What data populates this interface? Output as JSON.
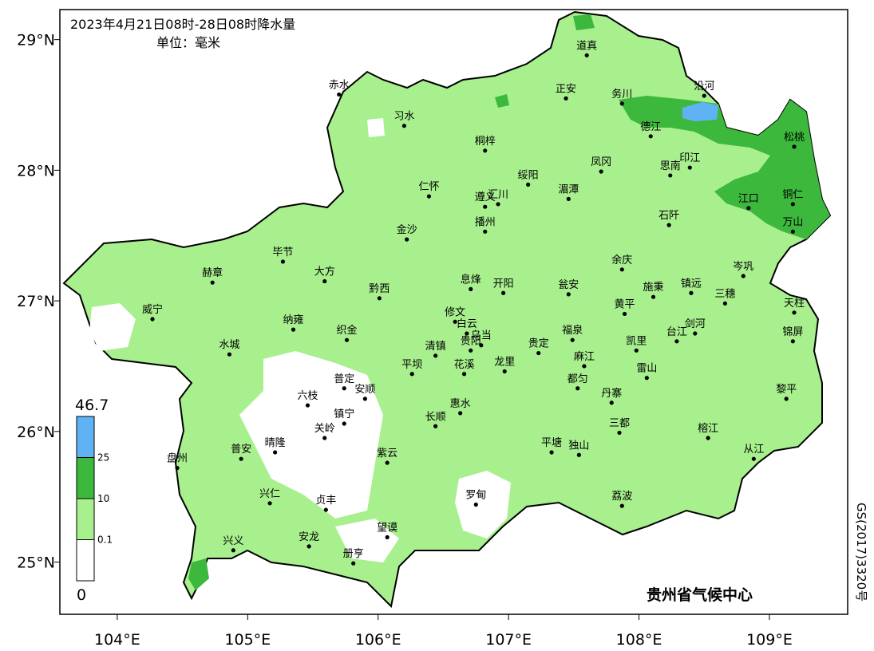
{
  "map": {
    "title": "2023年4月21日08时-28日08时降水量",
    "unit": "单位：毫米",
    "xlim": [
      103.56,
      109.6
    ],
    "ylim": [
      24.6,
      29.23
    ],
    "lon_ticks": [
      {
        "value": 104,
        "label": "104°E"
      },
      {
        "value": 105,
        "label": "105°E"
      },
      {
        "value": 106,
        "label": "106°E"
      },
      {
        "value": 107,
        "label": "107°E"
      },
      {
        "value": 108,
        "label": "108°E"
      },
      {
        "value": 109,
        "label": "109°E"
      }
    ],
    "lat_ticks": [
      {
        "value": 29,
        "label": "29°N"
      },
      {
        "value": 28,
        "label": "28°N"
      },
      {
        "value": 27,
        "label": "27°N"
      },
      {
        "value": 26,
        "label": "26°N"
      },
      {
        "value": 25,
        "label": "25°N"
      }
    ],
    "legend": {
      "levels": [
        0,
        0.1,
        10,
        25,
        46.7
      ],
      "colors": [
        "#ffffff",
        "#a8ef8e",
        "#3cb83c",
        "#5fb3f5"
      ]
    },
    "cities": [
      {
        "name": "道真",
        "lon": 107.6,
        "lat": 28.88
      },
      {
        "name": "正安",
        "lon": 107.44,
        "lat": 28.55
      },
      {
        "name": "务川",
        "lon": 107.87,
        "lat": 28.51
      },
      {
        "name": "沿河",
        "lon": 108.5,
        "lat": 28.57
      },
      {
        "name": "赤水",
        "lon": 105.7,
        "lat": 28.58
      },
      {
        "name": "习水",
        "lon": 106.2,
        "lat": 28.34
      },
      {
        "name": "桐梓",
        "lon": 106.82,
        "lat": 28.15
      },
      {
        "name": "德江",
        "lon": 108.09,
        "lat": 28.26
      },
      {
        "name": "松桃",
        "lon": 109.19,
        "lat": 28.18
      },
      {
        "name": "印江",
        "lon": 108.39,
        "lat": 28.02
      },
      {
        "name": "思南",
        "lon": 108.24,
        "lat": 27.96
      },
      {
        "name": "凤冈",
        "lon": 107.71,
        "lat": 27.99
      },
      {
        "name": "绥阳",
        "lon": 107.15,
        "lat": 27.89
      },
      {
        "name": "湄潭",
        "lon": 107.46,
        "lat": 27.78
      },
      {
        "name": "仁怀",
        "lon": 106.39,
        "lat": 27.8
      },
      {
        "name": "遵义",
        "lon": 106.82,
        "lat": 27.72
      },
      {
        "name": "汇川",
        "lon": 106.92,
        "lat": 27.74
      },
      {
        "name": "播州",
        "lon": 106.82,
        "lat": 27.53
      },
      {
        "name": "江口",
        "lon": 108.84,
        "lat": 27.71
      },
      {
        "name": "铜仁",
        "lon": 109.18,
        "lat": 27.74
      },
      {
        "name": "石阡",
        "lon": 108.23,
        "lat": 27.58
      },
      {
        "name": "万山",
        "lon": 109.18,
        "lat": 27.53
      },
      {
        "name": "金沙",
        "lon": 106.22,
        "lat": 27.47
      },
      {
        "name": "毕节",
        "lon": 105.27,
        "lat": 27.3
      },
      {
        "name": "余庆",
        "lon": 107.87,
        "lat": 27.24
      },
      {
        "name": "岑巩",
        "lon": 108.8,
        "lat": 27.19
      },
      {
        "name": "大方",
        "lon": 105.59,
        "lat": 27.15
      },
      {
        "name": "赫章",
        "lon": 104.73,
        "lat": 27.14
      },
      {
        "name": "息烽",
        "lon": 106.71,
        "lat": 27.09
      },
      {
        "name": "开阳",
        "lon": 106.96,
        "lat": 27.06
      },
      {
        "name": "瓮安",
        "lon": 107.46,
        "lat": 27.05
      },
      {
        "name": "施秉",
        "lon": 108.11,
        "lat": 27.03
      },
      {
        "name": "镇远",
        "lon": 108.4,
        "lat": 27.06
      },
      {
        "name": "三穗",
        "lon": 108.66,
        "lat": 26.98
      },
      {
        "name": "天柱",
        "lon": 109.19,
        "lat": 26.91
      },
      {
        "name": "黔西",
        "lon": 106.01,
        "lat": 27.02
      },
      {
        "name": "威宁",
        "lon": 104.27,
        "lat": 26.86
      },
      {
        "name": "黄平",
        "lon": 107.89,
        "lat": 26.9
      },
      {
        "name": "修文",
        "lon": 106.59,
        "lat": 26.84
      },
      {
        "name": "纳雍",
        "lon": 105.35,
        "lat": 26.78
      },
      {
        "name": "织金",
        "lon": 105.76,
        "lat": 26.7
      },
      {
        "name": "福泉",
        "lon": 107.49,
        "lat": 26.7
      },
      {
        "name": "剑河",
        "lon": 108.43,
        "lat": 26.75
      },
      {
        "name": "台江",
        "lon": 108.29,
        "lat": 26.69
      },
      {
        "name": "锦屏",
        "lon": 109.18,
        "lat": 26.69
      },
      {
        "name": "白云",
        "lon": 106.68,
        "lat": 26.75
      },
      {
        "name": "乌当",
        "lon": 106.79,
        "lat": 26.66
      },
      {
        "name": "贵阳",
        "lon": 106.71,
        "lat": 26.62
      },
      {
        "name": "清镇",
        "lon": 106.44,
        "lat": 26.58
      },
      {
        "name": "水城",
        "lon": 104.86,
        "lat": 26.59
      },
      {
        "name": "贵定",
        "lon": 107.23,
        "lat": 26.6
      },
      {
        "name": "麻江",
        "lon": 107.58,
        "lat": 26.5
      },
      {
        "name": "凯里",
        "lon": 107.98,
        "lat": 26.62
      },
      {
        "name": "平坝",
        "lon": 106.26,
        "lat": 26.44
      },
      {
        "name": "花溪",
        "lon": 106.66,
        "lat": 26.44
      },
      {
        "name": "龙里",
        "lon": 106.97,
        "lat": 26.46
      },
      {
        "name": "雷山",
        "lon": 108.06,
        "lat": 26.41
      },
      {
        "name": "都匀",
        "lon": 107.53,
        "lat": 26.33
      },
      {
        "name": "普定",
        "lon": 105.74,
        "lat": 26.33
      },
      {
        "name": "安顺",
        "lon": 105.9,
        "lat": 26.25
      },
      {
        "name": "黎平",
        "lon": 109.13,
        "lat": 26.25
      },
      {
        "name": "六枝",
        "lon": 105.46,
        "lat": 26.2
      },
      {
        "name": "丹寨",
        "lon": 107.79,
        "lat": 26.22
      },
      {
        "name": "惠水",
        "lon": 106.63,
        "lat": 26.14
      },
      {
        "name": "镇宁",
        "lon": 105.74,
        "lat": 26.06
      },
      {
        "name": "长顺",
        "lon": 106.44,
        "lat": 26.04
      },
      {
        "name": "三都",
        "lon": 107.85,
        "lat": 25.99
      },
      {
        "name": "关岭",
        "lon": 105.59,
        "lat": 25.95
      },
      {
        "name": "榕江",
        "lon": 108.53,
        "lat": 25.95
      },
      {
        "name": "晴隆",
        "lon": 105.21,
        "lat": 25.84
      },
      {
        "name": "普安",
        "lon": 104.95,
        "lat": 25.79
      },
      {
        "name": "盘州",
        "lon": 104.46,
        "lat": 25.72
      },
      {
        "name": "紫云",
        "lon": 106.07,
        "lat": 25.76
      },
      {
        "name": "平塘",
        "lon": 107.33,
        "lat": 25.84
      },
      {
        "name": "独山",
        "lon": 107.54,
        "lat": 25.82
      },
      {
        "name": "从江",
        "lon": 108.88,
        "lat": 25.79
      },
      {
        "name": "罗甸",
        "lon": 106.75,
        "lat": 25.44
      },
      {
        "name": "兴仁",
        "lon": 105.17,
        "lat": 25.45
      },
      {
        "name": "贞丰",
        "lon": 105.6,
        "lat": 25.4
      },
      {
        "name": "荔波",
        "lon": 107.87,
        "lat": 25.43
      },
      {
        "name": "望谟",
        "lon": 106.07,
        "lat": 25.19
      },
      {
        "name": "兴义",
        "lon": 104.89,
        "lat": 25.09
      },
      {
        "name": "安龙",
        "lon": 105.47,
        "lat": 25.12
      },
      {
        "name": "册亨",
        "lon": 105.81,
        "lat": 24.99
      }
    ],
    "credit": "贵州省气候中心",
    "approval": "GS(2017)3320号"
  }
}
